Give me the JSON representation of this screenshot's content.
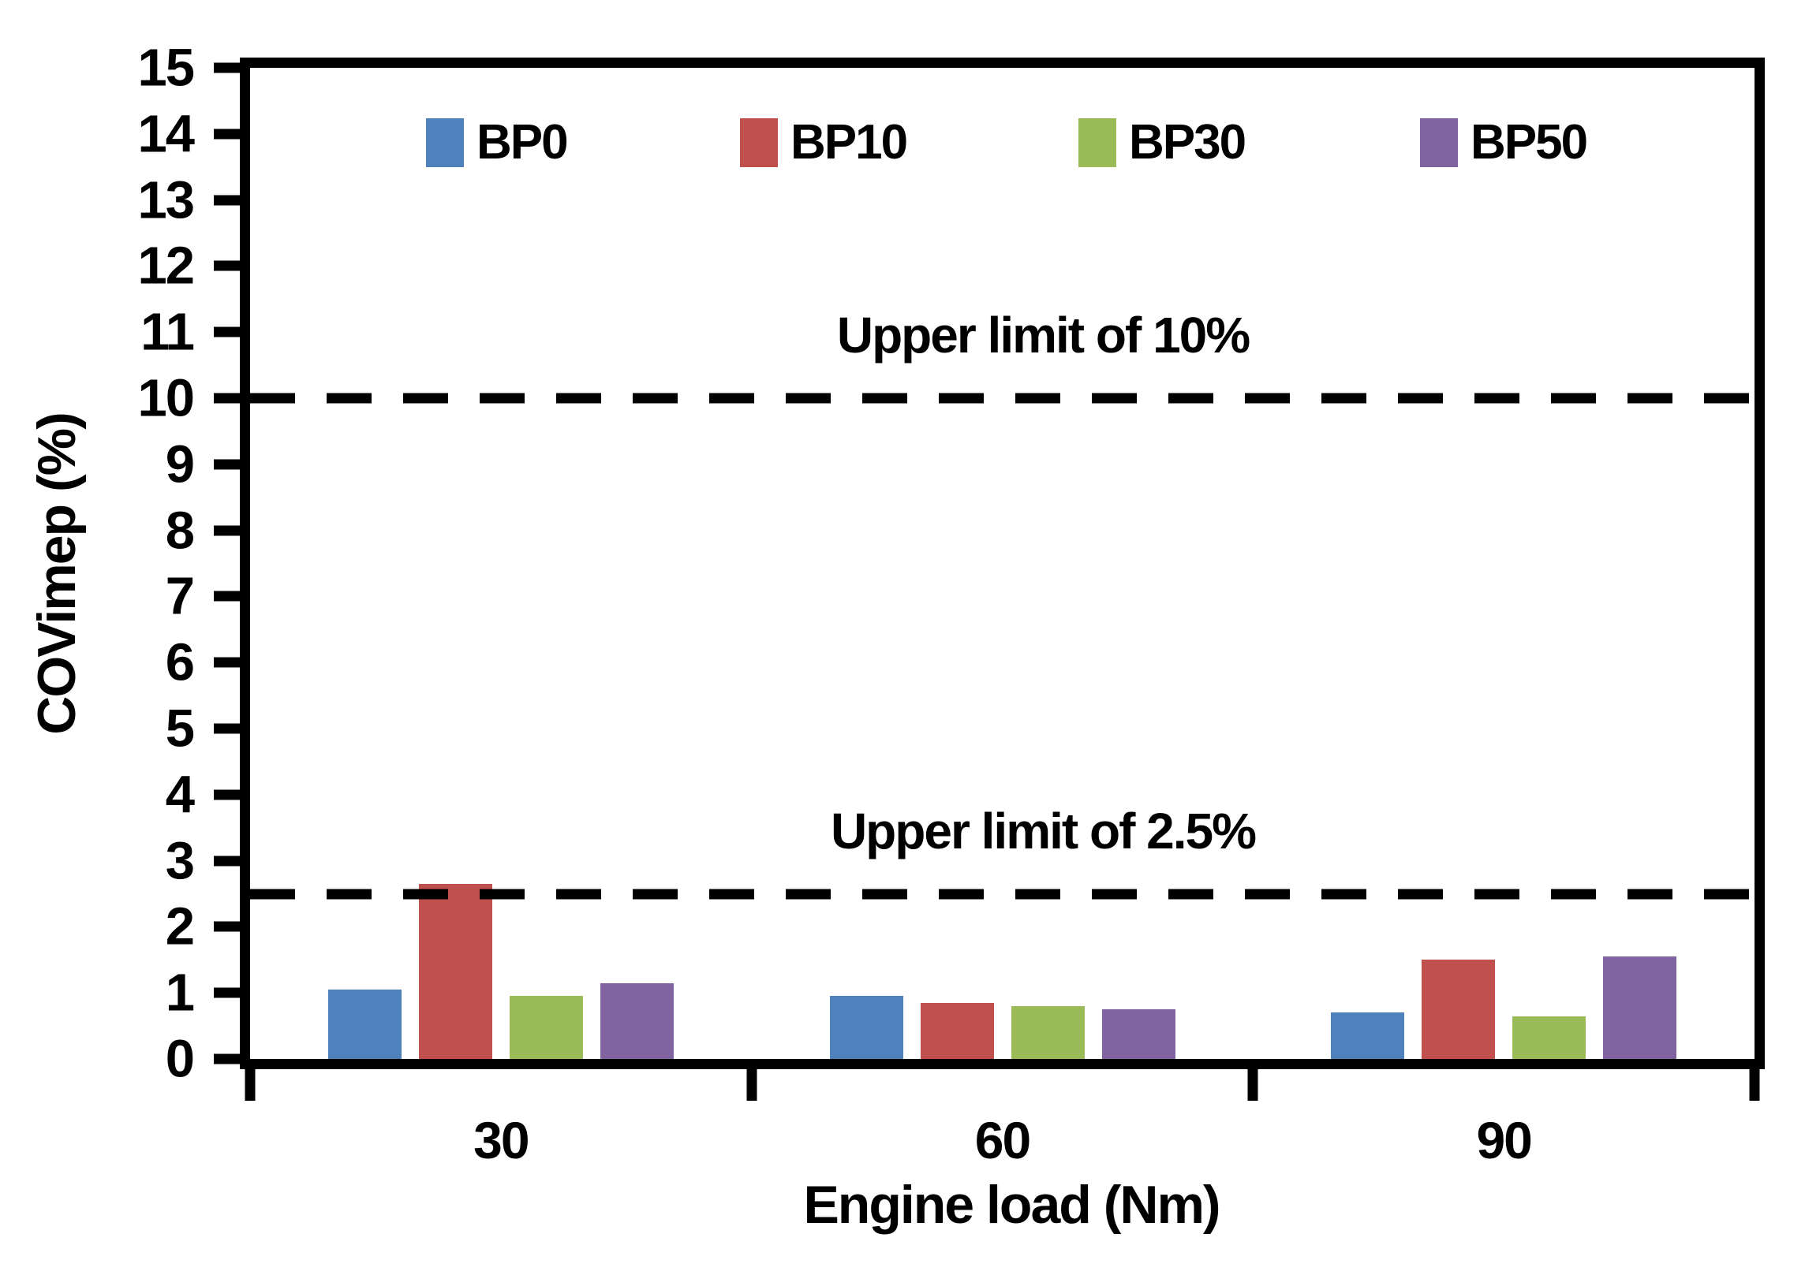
{
  "chart_data": {
    "type": "bar",
    "title": "",
    "xlabel": "Engine load (Nm)",
    "ylabel": "COVimep (%)",
    "categories": [
      "30",
      "60",
      "90"
    ],
    "series": [
      {
        "name": "BP0",
        "color": "#4F81BD",
        "values": [
          1.05,
          0.95,
          0.7
        ]
      },
      {
        "name": "BP10",
        "color": "#C0504D",
        "values": [
          2.65,
          0.85,
          1.5
        ]
      },
      {
        "name": "BP30",
        "color": "#9BBB59",
        "values": [
          0.95,
          0.8,
          0.65
        ]
      },
      {
        "name": "BP50",
        "color": "#8064A2",
        "values": [
          1.15,
          0.75,
          1.55
        ]
      }
    ],
    "ylim": [
      0,
      15
    ],
    "yticks": [
      0,
      1,
      2,
      3,
      4,
      5,
      6,
      7,
      8,
      9,
      10,
      11,
      12,
      13,
      14,
      15
    ],
    "grid": false,
    "legend_position": "top-inside",
    "legend_entries": [
      "BP0",
      "BP10",
      "BP30",
      "BP50"
    ],
    "reference_lines": [
      {
        "value": 10,
        "label": "Upper limit of 10%",
        "style": "dashed",
        "color": "#000000"
      },
      {
        "value": 2.5,
        "label": "Upper limit of 2.5%",
        "style": "dashed",
        "color": "#000000"
      }
    ],
    "axis_color": "#000000",
    "background": "#FFFFFF"
  }
}
